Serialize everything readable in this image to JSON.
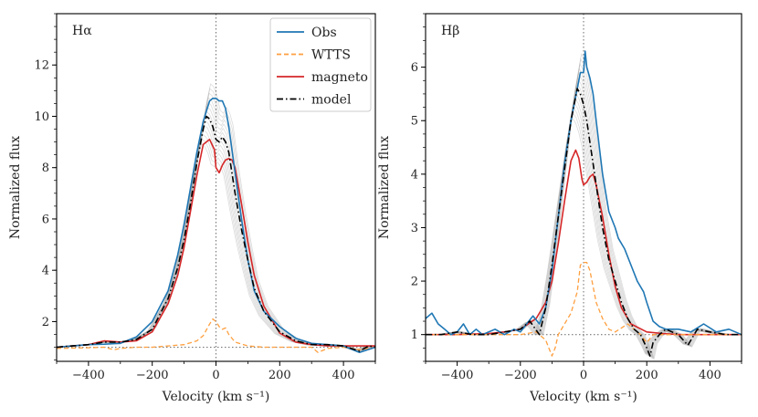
{
  "chart_data": [
    {
      "type": "line",
      "panel_label": "Hα",
      "xlabel": "Velocity (km s⁻¹)",
      "ylabel": "Normalized flux",
      "xlim": [
        -500,
        500
      ],
      "ylim": [
        0.45,
        14.0
      ],
      "xticks": [
        -400,
        -200,
        0,
        200,
        400
      ],
      "xtick_labels": [
        "−400",
        "−200",
        "0",
        "200",
        "400"
      ],
      "yticks": [
        2,
        4,
        6,
        8,
        10,
        12
      ],
      "ytick_labels": [
        "2",
        "4",
        "6",
        "8",
        "10",
        "12"
      ],
      "reference_lines": {
        "vertical_x": 0,
        "horizontal_y": 1
      },
      "legend": {
        "placement": "top-right",
        "entries": [
          "Obs",
          "WTTS",
          "magneto",
          "model"
        ]
      },
      "series": [
        {
          "name": "Obs",
          "color": "#1f77b4",
          "style": "solid",
          "x": [
            -500,
            -450,
            -400,
            -350,
            -300,
            -250,
            -200,
            -150,
            -120,
            -100,
            -80,
            -60,
            -40,
            -20,
            -10,
            0,
            10,
            20,
            30,
            40,
            60,
            80,
            100,
            120,
            150,
            200,
            250,
            300,
            350,
            400,
            450,
            500
          ],
          "y": [
            1.0,
            1.05,
            1.1,
            1.12,
            1.15,
            1.4,
            2.0,
            3.2,
            4.6,
            5.8,
            7.2,
            8.6,
            9.8,
            10.6,
            10.7,
            10.7,
            10.6,
            10.6,
            10.3,
            9.6,
            7.8,
            6.0,
            4.4,
            3.2,
            2.4,
            1.8,
            1.35,
            1.15,
            1.1,
            1.05,
            0.8,
            1.0
          ]
        },
        {
          "name": "WTTS",
          "color": "#ff9f3f",
          "style": "dashed",
          "x": [
            -500,
            -400,
            -350,
            -320,
            -300,
            -250,
            -200,
            -150,
            -100,
            -60,
            -40,
            -20,
            -10,
            0,
            10,
            20,
            30,
            40,
            60,
            100,
            150,
            200,
            250,
            300,
            320,
            350,
            400,
            450,
            500
          ],
          "y": [
            0.95,
            0.98,
            1.0,
            0.9,
            0.95,
            1.0,
            1.0,
            1.05,
            1.1,
            1.25,
            1.45,
            1.9,
            2.1,
            2.0,
            1.8,
            1.7,
            1.75,
            1.5,
            1.2,
            1.05,
            1.0,
            1.0,
            1.0,
            1.0,
            0.8,
            0.95,
            1.0,
            0.9,
            1.0
          ]
        },
        {
          "name": "magneto",
          "color": "#d62728",
          "style": "solid",
          "x": [
            -500,
            -450,
            -400,
            -350,
            -300,
            -250,
            -200,
            -150,
            -120,
            -100,
            -80,
            -60,
            -40,
            -20,
            -5,
            0,
            10,
            20,
            30,
            40,
            50,
            60,
            80,
            100,
            120,
            150,
            200,
            250,
            300,
            350,
            400,
            450,
            500
          ],
          "y": [
            1.0,
            1.05,
            1.1,
            1.25,
            1.2,
            1.25,
            1.6,
            2.7,
            3.8,
            4.9,
            6.3,
            7.7,
            8.9,
            9.1,
            8.7,
            8.0,
            7.8,
            8.1,
            8.3,
            8.35,
            8.3,
            8.0,
            6.6,
            5.1,
            3.8,
            2.6,
            1.55,
            1.2,
            1.1,
            1.05,
            1.05,
            1.05,
            1.05
          ]
        },
        {
          "name": "model",
          "color": "#000000",
          "style": "dashdot",
          "x": [
            -500,
            -450,
            -400,
            -350,
            -300,
            -250,
            -200,
            -150,
            -120,
            -100,
            -80,
            -60,
            -40,
            -30,
            -20,
            -10,
            0,
            10,
            20,
            30,
            40,
            60,
            80,
            100,
            120,
            150,
            200,
            250,
            300,
            350,
            400,
            450,
            480,
            500
          ],
          "y": [
            1.0,
            1.05,
            1.1,
            1.2,
            1.2,
            1.3,
            1.7,
            2.9,
            4.1,
            5.2,
            6.6,
            8.2,
            9.5,
            10.0,
            9.9,
            9.6,
            9.1,
            9.0,
            9.2,
            9.0,
            8.6,
            7.0,
            5.6,
            4.4,
            3.3,
            2.4,
            1.6,
            1.25,
            1.1,
            1.1,
            1.05,
            0.85,
            1.05,
            1.0
          ]
        }
      ]
    },
    {
      "type": "line",
      "panel_label": "Hβ",
      "xlabel": "Velocity (km s⁻¹)",
      "ylabel": "Normalized flux",
      "xlim": [
        -500,
        500
      ],
      "ylim": [
        0.5,
        7.0
      ],
      "xticks": [
        -400,
        -200,
        0,
        200,
        400
      ],
      "xtick_labels": [
        "−400",
        "−200",
        "0",
        "200",
        "400"
      ],
      "yticks": [
        1,
        2,
        3,
        4,
        5,
        6
      ],
      "ytick_labels": [
        "1",
        "2",
        "3",
        "4",
        "5",
        "6"
      ],
      "reference_lines": {
        "vertical_x": 0,
        "horizontal_y": 1
      },
      "series": [
        {
          "name": "Obs",
          "color": "#1f77b4",
          "style": "solid",
          "x": [
            -500,
            -480,
            -460,
            -440,
            -420,
            -400,
            -380,
            -360,
            -340,
            -320,
            -300,
            -280,
            -250,
            -220,
            -200,
            -180,
            -160,
            -140,
            -120,
            -100,
            -80,
            -60,
            -40,
            -20,
            -10,
            0,
            5,
            10,
            20,
            30,
            40,
            60,
            80,
            100,
            110,
            130,
            150,
            170,
            190,
            200,
            220,
            240,
            260,
            300,
            340,
            380,
            420,
            460,
            500
          ],
          "y": [
            1.3,
            1.4,
            1.2,
            1.1,
            1.0,
            1.05,
            1.2,
            1.0,
            1.1,
            1.0,
            1.05,
            1.1,
            1.0,
            1.1,
            1.05,
            1.2,
            1.35,
            1.2,
            1.5,
            2.2,
            3.2,
            4.2,
            5.0,
            5.6,
            5.9,
            5.9,
            6.3,
            6.0,
            5.8,
            5.5,
            5.0,
            4.0,
            3.3,
            3.0,
            2.8,
            2.6,
            2.3,
            2.0,
            1.8,
            1.6,
            1.25,
            1.15,
            1.1,
            1.1,
            1.05,
            1.2,
            1.05,
            1.1,
            1.0
          ]
        },
        {
          "name": "WTTS",
          "color": "#ff9f3f",
          "style": "dashed",
          "x": [
            -500,
            -300,
            -200,
            -150,
            -120,
            -100,
            -90,
            -80,
            -60,
            -40,
            -20,
            -10,
            0,
            10,
            20,
            30,
            40,
            60,
            80,
            100,
            140,
            180,
            200,
            220,
            260,
            300,
            400,
            500
          ],
          "y": [
            1.0,
            1.0,
            1.0,
            1.05,
            0.9,
            0.6,
            0.75,
            1.0,
            1.2,
            1.4,
            1.8,
            2.3,
            2.35,
            2.35,
            2.2,
            1.9,
            1.6,
            1.3,
            1.1,
            1.05,
            1.2,
            1.0,
            0.85,
            1.0,
            1.0,
            1.0,
            1.0,
            1.0
          ]
        },
        {
          "name": "magneto",
          "color": "#d62728",
          "style": "solid",
          "x": [
            -500,
            -400,
            -300,
            -250,
            -200,
            -150,
            -120,
            -100,
            -80,
            -60,
            -40,
            -25,
            -15,
            -5,
            0,
            10,
            20,
            30,
            40,
            60,
            80,
            100,
            120,
            150,
            200,
            250,
            300,
            400,
            500
          ],
          "y": [
            1.0,
            1.0,
            1.02,
            1.05,
            1.1,
            1.3,
            1.6,
            2.0,
            2.7,
            3.5,
            4.25,
            4.45,
            4.3,
            3.9,
            3.8,
            3.85,
            3.95,
            4.0,
            3.8,
            3.2,
            2.5,
            1.9,
            1.5,
            1.2,
            1.05,
            1.02,
            1.0,
            1.0,
            1.0
          ]
        },
        {
          "name": "model",
          "color": "#000000",
          "style": "dashdot",
          "x": [
            -500,
            -450,
            -400,
            -350,
            -300,
            -250,
            -200,
            -170,
            -140,
            -120,
            -100,
            -80,
            -60,
            -40,
            -20,
            -10,
            0,
            10,
            20,
            30,
            40,
            60,
            80,
            100,
            120,
            140,
            160,
            180,
            200,
            210,
            220,
            240,
            260,
            300,
            330,
            360,
            400,
            450,
            500
          ],
          "y": [
            1.0,
            1.0,
            1.05,
            1.0,
            1.0,
            1.05,
            1.1,
            1.25,
            1.0,
            1.5,
            2.3,
            3.2,
            4.1,
            5.0,
            5.6,
            5.5,
            5.3,
            5.0,
            4.6,
            4.2,
            3.8,
            3.0,
            2.4,
            2.0,
            1.6,
            1.3,
            1.1,
            1.0,
            0.75,
            0.6,
            0.85,
            1.0,
            1.1,
            1.0,
            0.8,
            1.1,
            1.05,
            1.0,
            1.0
          ]
        }
      ]
    }
  ]
}
